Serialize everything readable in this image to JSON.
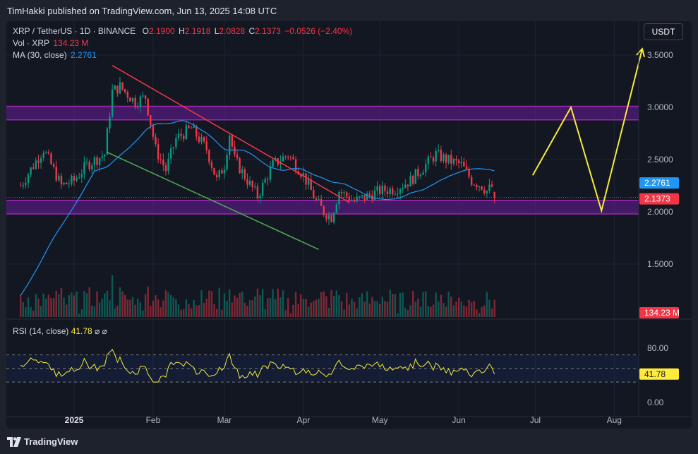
{
  "header": {
    "published": "TimHakki published on TradingView.com, Jun 13, 2025 14:08 UTC"
  },
  "footer": {
    "brand": "TradingView"
  },
  "legend": {
    "symbol": "XRP / TetherUS · 1D · BINANCE",
    "o_label": "O",
    "o_val": "2.1900",
    "h_label": "H",
    "h_val": "2.1918",
    "l_label": "L",
    "l_val": "2.0828",
    "c_label": "C",
    "c_val": "2.1373",
    "change": "−0.0526 (−2.40%)",
    "vol_label": "Vol · XRP",
    "vol_val": "134.23 M",
    "ma_label": "MA (30, close)",
    "ma_val": "2.2761"
  },
  "currency_button": "USDT",
  "rsi": {
    "label": "RSI (14, close)",
    "value": "41.78",
    "icons": "⌀  ⌀"
  },
  "badges": {
    "ma": "2.2761",
    "close": "2.1373",
    "volume": "134.23 M",
    "rsi": "41.78"
  },
  "colors": {
    "up": "#089981",
    "down": "#f23645",
    "ma": "#2196f3",
    "zone": "#6a1b9a",
    "zone_border": "#9c27b0",
    "projection": "#f5eb3a",
    "resistance": "#f23645",
    "support": "#4caf50",
    "rsi": "#f5eb3a"
  },
  "chart_data": {
    "type": "candlestick",
    "price_axis": {
      "ticks": [
        "3.5000",
        "3.0000",
        "2.5000",
        "2.0000",
        "1.5000"
      ],
      "range": [
        1.2,
        3.7
      ]
    },
    "rsi_axis": {
      "ticks": [
        "80.00",
        "0.00"
      ],
      "range": [
        -10,
        100
      ],
      "levels": [
        70,
        50,
        30
      ]
    },
    "x_axis": {
      "ticks": [
        "2025",
        "Feb",
        "Mar",
        "Apr",
        "May",
        "Jun",
        "Jul",
        "Aug"
      ]
    },
    "zones": [
      {
        "name": "resistance",
        "from": 2.88,
        "to": 3.01
      },
      {
        "name": "support",
        "from": 1.98,
        "to": 2.11
      }
    ],
    "trendlines": [
      {
        "name": "descending-resistance",
        "from": [
          "2025-01-16",
          3.4
        ],
        "to": [
          "2025-04-19",
          2.09
        ]
      },
      {
        "name": "descending-support",
        "from": [
          "2025-01-14",
          2.57
        ],
        "to": [
          "2025-04-07",
          1.64
        ]
      }
    ],
    "projection": [
      [
        "2025-06-30",
        2.35
      ],
      [
        "2025-07-15",
        3.0
      ],
      [
        "2025-07-27",
        2.01
      ],
      [
        "2025-08-12",
        3.56
      ]
    ],
    "last_close": 2.1373,
    "ma_last": 2.2761,
    "rsi_last": 41.78,
    "volume_last": "134.23 M"
  }
}
